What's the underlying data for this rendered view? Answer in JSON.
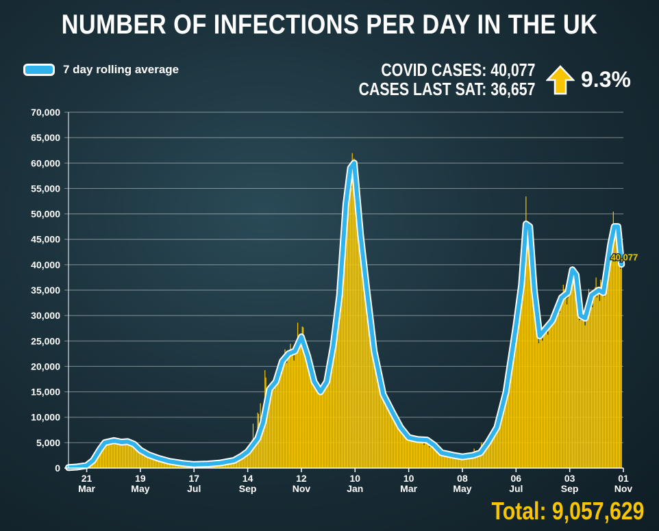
{
  "header": {
    "title": "NUMBER OF INFECTIONS PER DAY IN THE UK",
    "legend_label": "7 day rolling average",
    "covid_cases_line": "COVID CASES: 40,077",
    "cases_last_sat_line": "CASES LAST SAT: 36,657",
    "change_pct": "9.3%",
    "total": "Total: 9,057,629"
  },
  "colors": {
    "bar": "#f7c600",
    "line": "#30b3ec",
    "line_outline": "#ffffff",
    "accent": "#f7c600"
  },
  "icons": {
    "trend": "up-arrow-icon"
  },
  "chart_data": {
    "type": "bar",
    "overlay": "line",
    "title": "NUMBER OF INFECTIONS PER DAY IN THE UK",
    "ylim": [
      0,
      70000
    ],
    "y_ticks": [
      0,
      5000,
      10000,
      15000,
      20000,
      25000,
      30000,
      35000,
      40000,
      45000,
      50000,
      55000,
      60000,
      65000,
      70000
    ],
    "y_tick_labels": [
      "0",
      "5,000",
      "10,000",
      "15,000",
      "20,000",
      "25,000",
      "30,000",
      "35,000",
      "40,000",
      "45,000",
      "50,000",
      "55,000",
      "60,000",
      "65,000",
      "70,000"
    ],
    "x_range": [
      "2020-03-01",
      "2021-11-01"
    ],
    "x_ticks": [
      {
        "date": "2020-03-21",
        "day": "21",
        "month": "Mar"
      },
      {
        "date": "2020-05-19",
        "day": "19",
        "month": "May"
      },
      {
        "date": "2020-07-17",
        "day": "17",
        "month": "Jul"
      },
      {
        "date": "2020-09-14",
        "day": "14",
        "month": "Sep"
      },
      {
        "date": "2020-11-12",
        "day": "12",
        "month": "Nov"
      },
      {
        "date": "2021-01-10",
        "day": "10",
        "month": "Jan"
      },
      {
        "date": "2021-03-10",
        "day": "10",
        "month": "Mar"
      },
      {
        "date": "2021-05-08",
        "day": "08",
        "month": "May"
      },
      {
        "date": "2021-07-06",
        "day": "06",
        "month": "Jul"
      },
      {
        "date": "2021-09-03",
        "day": "03",
        "month": "Sep"
      },
      {
        "date": "2021-11-01",
        "day": "01",
        "month": "Nov"
      }
    ],
    "grid": true,
    "legend": "top-left",
    "series": [
      {
        "name": "7 day rolling average",
        "style": "line",
        "points": [
          [
            "2020-03-01",
            100
          ],
          [
            "2020-03-10",
            200
          ],
          [
            "2020-03-21",
            500
          ],
          [
            "2020-03-28",
            1500
          ],
          [
            "2020-04-05",
            3800
          ],
          [
            "2020-04-10",
            5000
          ],
          [
            "2020-04-20",
            5400
          ],
          [
            "2020-04-28",
            5100
          ],
          [
            "2020-05-05",
            5200
          ],
          [
            "2020-05-12",
            4700
          ],
          [
            "2020-05-19",
            3500
          ],
          [
            "2020-05-28",
            2600
          ],
          [
            "2020-06-08",
            1900
          ],
          [
            "2020-06-20",
            1300
          ],
          [
            "2020-07-05",
            900
          ],
          [
            "2020-07-17",
            700
          ],
          [
            "2020-08-01",
            800
          ],
          [
            "2020-08-15",
            1000
          ],
          [
            "2020-08-30",
            1500
          ],
          [
            "2020-09-07",
            2300
          ],
          [
            "2020-09-14",
            3200
          ],
          [
            "2020-09-25",
            5800
          ],
          [
            "2020-10-01",
            9000
          ],
          [
            "2020-10-08",
            15500
          ],
          [
            "2020-10-15",
            17000
          ],
          [
            "2020-10-22",
            21000
          ],
          [
            "2020-10-29",
            22500
          ],
          [
            "2020-11-05",
            23000
          ],
          [
            "2020-11-12",
            25800
          ],
          [
            "2020-11-19",
            22000
          ],
          [
            "2020-11-26",
            17000
          ],
          [
            "2020-12-03",
            15000
          ],
          [
            "2020-12-10",
            17000
          ],
          [
            "2020-12-17",
            24000
          ],
          [
            "2020-12-24",
            34000
          ],
          [
            "2020-12-31",
            52000
          ],
          [
            "2021-01-05",
            59000
          ],
          [
            "2021-01-09",
            60000
          ],
          [
            "2021-01-16",
            46000
          ],
          [
            "2021-01-23",
            35000
          ],
          [
            "2021-01-31",
            23000
          ],
          [
            "2021-02-10",
            14500
          ],
          [
            "2021-02-20",
            11000
          ],
          [
            "2021-03-01",
            8000
          ],
          [
            "2021-03-10",
            6000
          ],
          [
            "2021-03-20",
            5600
          ],
          [
            "2021-03-30",
            5500
          ],
          [
            "2021-04-07",
            4500
          ],
          [
            "2021-04-15",
            3000
          ],
          [
            "2021-04-28",
            2500
          ],
          [
            "2021-05-08",
            2200
          ],
          [
            "2021-05-20",
            2500
          ],
          [
            "2021-05-28",
            3000
          ],
          [
            "2021-06-05",
            5000
          ],
          [
            "2021-06-15",
            8000
          ],
          [
            "2021-06-25",
            15000
          ],
          [
            "2021-07-06",
            28000
          ],
          [
            "2021-07-12",
            36000
          ],
          [
            "2021-07-17",
            48000
          ],
          [
            "2021-07-21",
            47500
          ],
          [
            "2021-07-26",
            35000
          ],
          [
            "2021-08-01",
            26000
          ],
          [
            "2021-08-08",
            27500
          ],
          [
            "2021-08-15",
            29000
          ],
          [
            "2021-08-25",
            33500
          ],
          [
            "2021-09-01",
            34500
          ],
          [
            "2021-09-06",
            39000
          ],
          [
            "2021-09-10",
            38000
          ],
          [
            "2021-09-15",
            30000
          ],
          [
            "2021-09-20",
            29500
          ],
          [
            "2021-09-27",
            34000
          ],
          [
            "2021-10-05",
            35000
          ],
          [
            "2021-10-10",
            34500
          ],
          [
            "2021-10-18",
            44000
          ],
          [
            "2021-10-22",
            47500
          ],
          [
            "2021-10-26",
            47500
          ],
          [
            "2021-10-30",
            40077
          ]
        ]
      },
      {
        "name": "Daily cases",
        "style": "bar",
        "points": [
          [
            "2020-03-01",
            100
          ],
          [
            "2020-03-21",
            800
          ],
          [
            "2020-04-05",
            4500
          ],
          [
            "2020-04-10",
            6000
          ],
          [
            "2020-04-25",
            5200
          ],
          [
            "2020-05-05",
            6200
          ],
          [
            "2020-05-19",
            3000
          ],
          [
            "2020-06-10",
            1600
          ],
          [
            "2020-07-17",
            600
          ],
          [
            "2020-08-20",
            1200
          ],
          [
            "2020-09-14",
            3000
          ],
          [
            "2020-10-03",
            23000
          ],
          [
            "2020-10-10",
            15000
          ],
          [
            "2020-10-25",
            24000
          ],
          [
            "2020-11-05",
            25000
          ],
          [
            "2020-11-11",
            33500
          ],
          [
            "2020-11-19",
            22000
          ],
          [
            "2020-12-01",
            13000
          ],
          [
            "2020-12-15",
            21000
          ],
          [
            "2020-12-29",
            53000
          ],
          [
            "2021-01-04",
            61000
          ],
          [
            "2021-01-08",
            68000
          ],
          [
            "2021-01-12",
            47000
          ],
          [
            "2021-01-25",
            24000
          ],
          [
            "2021-02-10",
            12500
          ],
          [
            "2021-03-10",
            5800
          ],
          [
            "2021-04-15",
            2800
          ],
          [
            "2021-05-08",
            2100
          ],
          [
            "2021-06-15",
            7500
          ],
          [
            "2021-06-28",
            22000
          ],
          [
            "2021-07-06",
            30000
          ],
          [
            "2021-07-17",
            54700
          ],
          [
            "2021-07-20",
            46500
          ],
          [
            "2021-07-30",
            24000
          ],
          [
            "2021-08-14",
            30000
          ],
          [
            "2021-08-30",
            38000
          ],
          [
            "2021-09-06",
            42000
          ],
          [
            "2021-09-15",
            27000
          ],
          [
            "2021-09-25",
            37000
          ],
          [
            "2021-10-10",
            39000
          ],
          [
            "2021-10-21",
            52000
          ],
          [
            "2021-10-24",
            47000
          ],
          [
            "2021-10-27",
            37000
          ],
          [
            "2021-10-30",
            40077
          ]
        ]
      }
    ],
    "annotations": [
      {
        "text": "40,077",
        "date": "2021-10-30",
        "value": 40077
      }
    ]
  }
}
